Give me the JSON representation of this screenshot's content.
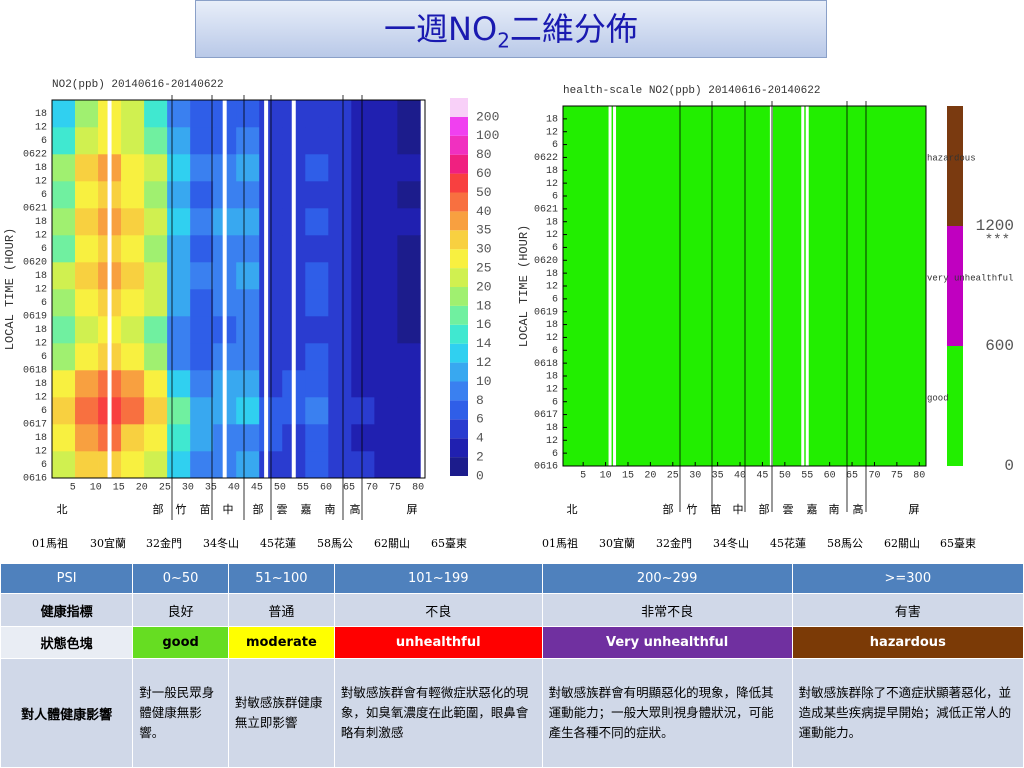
{
  "title": {
    "main": "一週NO",
    "sub": "2",
    "rest": "二維分佈"
  },
  "heatmap": {
    "type": "heatmap",
    "title": "NO2(ppb) 20140616-20140622",
    "ylabel": "LOCAL TIME (HOUR)",
    "xlim": [
      0.5,
      81.5
    ],
    "ylim": [
      0,
      168
    ],
    "xticks": [
      5,
      10,
      15,
      20,
      25,
      30,
      35,
      40,
      45,
      50,
      55,
      60,
      65,
      70,
      75,
      80
    ],
    "yticks": [
      {
        "value": 0,
        "label": "0616"
      },
      6,
      12,
      18,
      {
        "value": 24,
        "label": "0617"
      },
      {
        "value": 30,
        "label": "6"
      },
      {
        "value": 36,
        "label": "12"
      },
      {
        "value": 42,
        "label": "18"
      },
      {
        "value": 48,
        "label": "0618"
      },
      {
        "value": 54,
        "label": "6"
      },
      {
        "value": 60,
        "label": "12"
      },
      {
        "value": 66,
        "label": "18"
      },
      {
        "value": 72,
        "label": "0619"
      },
      {
        "value": 78,
        "label": "6"
      },
      {
        "value": 84,
        "label": "12"
      },
      {
        "value": 90,
        "label": "18"
      },
      {
        "value": 96,
        "label": "0620"
      },
      {
        "value": 102,
        "label": "6"
      },
      {
        "value": 108,
        "label": "12"
      },
      {
        "value": 114,
        "label": "18"
      },
      {
        "value": 120,
        "label": "0621"
      },
      {
        "value": 126,
        "label": "6"
      },
      {
        "value": 132,
        "label": "12"
      },
      {
        "value": 138,
        "label": "18"
      },
      {
        "value": 144,
        "label": "0622"
      },
      {
        "value": 150,
        "label": "6"
      },
      {
        "value": 156,
        "label": "12"
      },
      {
        "value": 162,
        "label": "18"
      }
    ],
    "x_bins": [
      0.5,
      5.5,
      10.5,
      15.5,
      20.5,
      25.5,
      30.5,
      35.5,
      40.5,
      45.5,
      50.5,
      55.5,
      60.5,
      65.5,
      70.5,
      75.5,
      80.5
    ],
    "y_bins": [
      0,
      12,
      24,
      36,
      48,
      60,
      72,
      84,
      96,
      108,
      120,
      132,
      144,
      156,
      168
    ],
    "values": [
      [
        20,
        30,
        30,
        25,
        20,
        12,
        8,
        8,
        10,
        5,
        5,
        6,
        5,
        4,
        3,
        2
      ],
      [
        25,
        35,
        40,
        30,
        25,
        14,
        10,
        8,
        8,
        6,
        5,
        6,
        4,
        3,
        2,
        2
      ],
      [
        30,
        40,
        50,
        40,
        30,
        16,
        10,
        10,
        12,
        6,
        6,
        8,
        5,
        4,
        3,
        2
      ],
      [
        25,
        35,
        40,
        35,
        25,
        12,
        8,
        10,
        10,
        5,
        6,
        6,
        5,
        3,
        2,
        2
      ],
      [
        18,
        25,
        30,
        25,
        18,
        8,
        6,
        8,
        8,
        4,
        5,
        6,
        4,
        3,
        2,
        2
      ],
      [
        16,
        20,
        25,
        20,
        16,
        8,
        6,
        6,
        8,
        4,
        4,
        5,
        4,
        3,
        2,
        1
      ],
      [
        18,
        25,
        30,
        25,
        20,
        10,
        6,
        8,
        8,
        4,
        5,
        6,
        4,
        3,
        2,
        1
      ],
      [
        20,
        30,
        35,
        30,
        20,
        10,
        8,
        8,
        10,
        5,
        5,
        6,
        4,
        3,
        2,
        1
      ],
      [
        16,
        25,
        30,
        25,
        18,
        10,
        6,
        8,
        8,
        4,
        4,
        5,
        4,
        3,
        2,
        1
      ],
      [
        18,
        30,
        35,
        30,
        20,
        12,
        8,
        10,
        10,
        5,
        5,
        6,
        4,
        3,
        2,
        2
      ],
      [
        16,
        25,
        30,
        25,
        18,
        10,
        6,
        8,
        8,
        4,
        4,
        5,
        4,
        3,
        2,
        1
      ],
      [
        18,
        30,
        35,
        25,
        20,
        12,
        8,
        8,
        10,
        5,
        5,
        6,
        4,
        3,
        2,
        2
      ],
      [
        14,
        20,
        25,
        20,
        16,
        10,
        6,
        6,
        8,
        4,
        4,
        5,
        4,
        3,
        2,
        1
      ],
      [
        12,
        18,
        25,
        20,
        14,
        8,
        6,
        6,
        6,
        4,
        4,
        5,
        4,
        3,
        2,
        1
      ]
    ],
    "missing_x": [
      13,
      38,
      47,
      53
    ],
    "colorbar": {
      "levels": [
        0,
        2,
        4,
        6,
        8,
        10,
        12,
        14,
        16,
        18,
        20,
        25,
        30,
        35,
        40,
        50,
        60,
        80,
        100,
        200
      ],
      "colors": [
        "#1c1c8c",
        "#2020b0",
        "#2a3cd0",
        "#2f5ee8",
        "#3a80f0",
        "#38a8f0",
        "#30d0f0",
        "#40e8d0",
        "#70f0a0",
        "#a0f070",
        "#d0f050",
        "#f8f040",
        "#f8d040",
        "#f8a040",
        "#f87040",
        "#f84040",
        "#f02080",
        "#f030c0",
        "#f040f0",
        "#f8d0f8"
      ]
    }
  },
  "health": {
    "type": "heatmap",
    "title": "health-scale NO2(ppb) 20140616-20140622",
    "ylabel": "LOCAL TIME (HOUR)",
    "fill": "#22ee00",
    "missing_x": [
      11,
      12,
      47,
      54,
      55
    ],
    "colorbar": {
      "lim": [
        0,
        1800
      ],
      "levels": [
        0,
        600,
        1200
      ],
      "colors": [
        "#22ee00",
        "#c000c0",
        "#7a3a10"
      ],
      "ticks": [
        0,
        600,
        1200
      ],
      "top_label": "***",
      "names": [
        "good",
        "very unhealthful",
        "hazardous"
      ]
    }
  },
  "regions": [
    "北",
    "部",
    "竹",
    "苗",
    "中",
    "部",
    "雲",
    "嘉",
    "南",
    "高",
    "屏"
  ],
  "stations": [
    "01馬祖",
    "30宜蘭",
    "32金門",
    "34冬山",
    "45花蓮",
    "58馬公",
    "62關山",
    "65臺東"
  ],
  "table": {
    "header": [
      "PSI",
      "0~50",
      "51~100",
      "101~199",
      "200~299",
      ">=300"
    ],
    "rows": [
      [
        "健康指標",
        "良好",
        "普通",
        "不良",
        "非常不良",
        "有害"
      ],
      [
        "狀態色塊",
        "good",
        "moderate",
        "unhealthful",
        "Very unhealthful",
        "hazardous"
      ],
      [
        "對人體健康影響",
        "對一般民眾身體健康無影響。",
        "對敏感族群健康無立即影響",
        "對敏感族群會有輕微症狀惡化的現象，如臭氧濃度在此範圍，眼鼻會略有刺激感",
        "對敏感族群會有明顯惡化的現象，降低其運動能力；一般大眾則視身體狀況，可能產生各種不同的症狀。",
        "對敏感族群除了不適症狀顯著惡化，並造成某些疾病提早開始；減低正常人的運動能力。"
      ]
    ],
    "status_colors": [
      "#66dd22",
      "#ffff00",
      "#ff0000",
      "#7030a0",
      "#7b3a06"
    ]
  }
}
